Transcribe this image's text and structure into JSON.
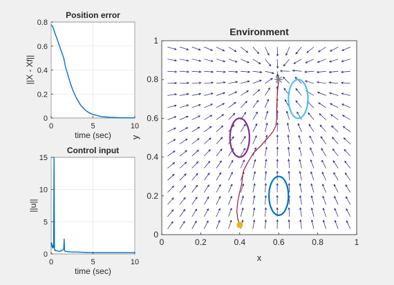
{
  "chart_data": [
    {
      "type": "line",
      "title": "Position error",
      "xlabel": "time (sec)",
      "ylabel": "||X - Xf||",
      "xlim": [
        0,
        10
      ],
      "ylim": [
        0,
        0.8
      ],
      "xticks": [
        0,
        5,
        10
      ],
      "yticks": [
        0,
        0.2,
        0.4,
        0.6,
        0.8
      ],
      "grid": true,
      "series": [
        {
          "color": "#0072bd",
          "x": [
            0,
            0.2,
            0.5,
            0.8,
            1.0,
            1.2,
            1.5,
            1.7,
            2.0,
            2.3,
            2.6,
            3.0,
            3.5,
            4.0,
            4.5,
            5.0,
            5.5,
            6.0,
            7.0,
            8.0,
            9.0,
            10.0
          ],
          "y": [
            0.78,
            0.76,
            0.7,
            0.64,
            0.6,
            0.56,
            0.5,
            0.43,
            0.36,
            0.29,
            0.23,
            0.17,
            0.11,
            0.07,
            0.045,
            0.03,
            0.02,
            0.012,
            0.006,
            0.003,
            0.002,
            0.001
          ]
        }
      ]
    },
    {
      "type": "line",
      "title": "Control input",
      "xlabel": "time (sec)",
      "ylabel": "||u||",
      "xlim": [
        0,
        10
      ],
      "ylim": [
        0,
        15
      ],
      "xticks": [
        0,
        5,
        10
      ],
      "yticks": [
        0,
        5,
        10,
        15
      ],
      "grid": true,
      "series": [
        {
          "color": "#0072bd",
          "x": [
            0,
            0.05,
            0.1,
            0.15,
            0.2,
            0.3,
            0.35,
            0.4,
            0.45,
            0.5,
            0.6,
            0.8,
            1.0,
            1.2,
            1.4,
            1.5,
            1.55,
            1.6,
            1.7,
            2.0,
            2.5,
            3.0,
            4.0,
            5.0,
            6.0,
            7.0,
            8.0,
            9.0,
            10.0
          ],
          "y": [
            1.8,
            1.2,
            1.6,
            0.9,
            1.3,
            1.0,
            15,
            0.7,
            0.5,
            0.6,
            0.5,
            0.45,
            0.4,
            0.5,
            0.6,
            0.8,
            2.3,
            0.5,
            0.4,
            0.35,
            0.3,
            0.3,
            0.25,
            0.2,
            0.2,
            0.2,
            0.2,
            0.2,
            0.2
          ]
        }
      ]
    },
    {
      "type": "line",
      "title": "Environment",
      "xlabel": "x",
      "ylabel": "y",
      "xlim": [
        0,
        1
      ],
      "ylim": [
        0,
        1
      ],
      "xticks": [
        0,
        0.2,
        0.4,
        0.6,
        0.8,
        1
      ],
      "yticks": [
        0,
        0.2,
        0.4,
        0.6,
        0.8,
        1
      ],
      "grid": false,
      "start": {
        "x": 0.4,
        "y": 0.05,
        "color": "#edb120"
      },
      "goal": {
        "x": 0.6,
        "y": 0.8,
        "color": "#808080"
      },
      "obstacles": [
        {
          "cx": 0.4,
          "cy": 0.5,
          "rx": 0.05,
          "ry": 0.1,
          "color": "#7e2f8e"
        },
        {
          "cx": 0.6,
          "cy": 0.2,
          "rx": 0.05,
          "ry": 0.1,
          "color": "#0072bd"
        },
        {
          "cx": 0.7,
          "cy": 0.7,
          "rx": 0.05,
          "ry": 0.1,
          "color": "#4dbeee"
        }
      ],
      "trajectory": {
        "color": "#a2142f",
        "x": [
          0.4,
          0.39,
          0.385,
          0.39,
          0.4,
          0.41,
          0.415,
          0.42,
          0.44,
          0.47,
          0.51,
          0.545,
          0.57,
          0.585,
          0.59,
          0.59,
          0.592,
          0.595,
          0.6
        ],
        "y": [
          0.05,
          0.08,
          0.12,
          0.17,
          0.22,
          0.26,
          0.3,
          0.33,
          0.37,
          0.42,
          0.46,
          0.5,
          0.53,
          0.56,
          0.6,
          0.65,
          0.7,
          0.75,
          0.8
        ]
      },
      "vector_field": {
        "color": "#191970",
        "grid_step": 0.0625
      }
    }
  ]
}
